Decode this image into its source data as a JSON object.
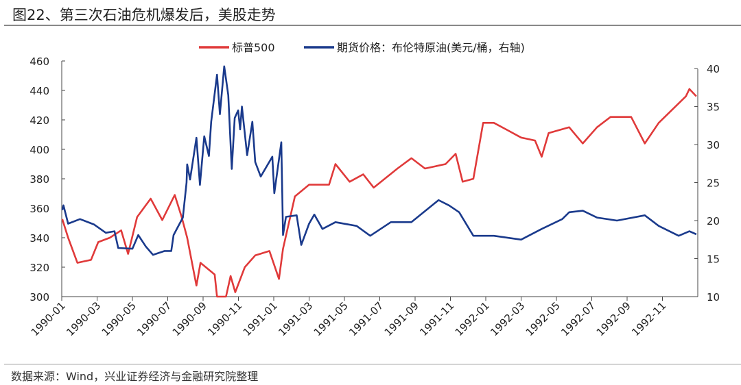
{
  "title": "图22、第三次石油危机爆发后，美股走势",
  "source": "数据来源：Wind，兴业证券经济与金融研究院整理",
  "chart_data": {
    "type": "line",
    "title": "图22、第三次石油危机爆发后，美股走势",
    "legend_position": "top",
    "grid": false,
    "x_ticks": [
      "1990-01",
      "1990-03",
      "1990-05",
      "1990-07",
      "1990-09",
      "1990-11",
      "1991-01",
      "1991-03",
      "1991-05",
      "1991-07",
      "1991-09",
      "1991-11",
      "1992-01",
      "1992-03",
      "1992-05",
      "1992-07",
      "1992-09",
      "1992-11"
    ],
    "y_left": {
      "lim": [
        300,
        460
      ],
      "ticks": [
        300,
        320,
        340,
        360,
        380,
        400,
        420,
        440,
        460
      ]
    },
    "y_right": {
      "lim": [
        10,
        41
      ],
      "ticks": [
        10,
        15,
        20,
        25,
        30,
        35,
        40
      ]
    },
    "series": [
      {
        "name": "标普500",
        "axis": "left",
        "color": "#e03a3a",
        "x": [
          "1990-01-02",
          "1990-01-12",
          "1990-01-28",
          "1990-02-21",
          "1990-03-03",
          "1990-03-23",
          "1990-04-12",
          "1990-04-24",
          "1990-05-09",
          "1990-06-02",
          "1990-06-22",
          "1990-07-13",
          "1990-07-25",
          "1990-08-04",
          "1990-08-20",
          "1990-08-27",
          "1990-09-21",
          "1990-09-25",
          "1990-10-10",
          "1990-10-18",
          "1990-10-26",
          "1990-11-12",
          "1990-11-30",
          "1990-12-24",
          "1991-01-10",
          "1991-01-17",
          "1991-02-07",
          "1991-03-01",
          "1991-04-05",
          "1991-04-16",
          "1991-05-10",
          "1991-06-03",
          "1991-06-21",
          "1991-08-01",
          "1991-08-25",
          "1991-09-18",
          "1991-10-23",
          "1991-11-10",
          "1991-11-22",
          "1991-12-10",
          "1991-12-27",
          "1992-01-15",
          "1992-02-08",
          "1992-03-01",
          "1992-03-25",
          "1992-04-06",
          "1992-04-18",
          "1992-05-23",
          "1992-06-16",
          "1992-07-10",
          "1992-08-03",
          "1992-09-08",
          "1992-10-01",
          "1992-10-25",
          "1992-11-18",
          "1992-12-11",
          "1992-12-17",
          "1992-12-29"
        ],
        "y": [
          352.6,
          340,
          323,
          325,
          337,
          340,
          345,
          329,
          354,
          366.5,
          352,
          369,
          354,
          340,
          307.5,
          323,
          315,
          300,
          300,
          314,
          303,
          320,
          328,
          331,
          312,
          332.5,
          368,
          376,
          376,
          390,
          378,
          383,
          374,
          387,
          394,
          387,
          390,
          397,
          378,
          380,
          418,
          418,
          413,
          408,
          406,
          395,
          411,
          415,
          404,
          415,
          422,
          422,
          404,
          418,
          427,
          436,
          441,
          436
        ]
      },
      {
        "name": "期货价格：布伦特原油(美元/桶，右轴)",
        "axis": "right",
        "color": "#1a3a8c",
        "x": [
          "1990-01-02",
          "1990-01-04",
          "1990-01-12",
          "1990-02-02",
          "1990-02-26",
          "1990-03-16",
          "1990-03-31",
          "1990-04-07",
          "1990-05-01",
          "1990-05-11",
          "1990-05-24",
          "1990-06-06",
          "1990-06-26",
          "1990-07-07",
          "1990-07-11",
          "1990-07-27",
          "1990-08-03",
          "1990-08-04",
          "1990-08-09",
          "1990-08-20",
          "1990-08-26",
          "1990-09-03",
          "1990-09-11",
          "1990-09-15",
          "1990-09-25",
          "1990-09-30",
          "1990-10-07",
          "1990-10-14",
          "1990-10-20",
          "1990-10-25",
          "1990-10-31",
          "1990-11-04",
          "1990-11-07",
          "1990-11-16",
          "1990-11-25",
          "1990-11-30",
          "1990-12-09",
          "1990-12-29",
          "1991-01-02",
          "1991-01-14",
          "1991-01-17",
          "1991-01-22",
          "1991-02-10",
          "1991-02-18",
          "1991-03-01",
          "1991-03-10",
          "1991-03-24",
          "1991-04-16",
          "1991-05-22",
          "1991-06-15",
          "1991-07-20",
          "1991-08-25",
          "1991-10-11",
          "1991-10-29",
          "1991-11-16",
          "1991-12-10",
          "1992-01-15",
          "1992-03-01",
          "1992-04-06",
          "1992-05-11",
          "1992-05-23",
          "1992-06-16",
          "1992-07-10",
          "1992-08-14",
          "1992-10-01",
          "1992-10-25",
          "1992-11-29",
          "1992-12-17",
          "1992-12-29"
        ],
        "y": [
          21.4,
          22.0,
          19.6,
          20.2,
          19.5,
          18.4,
          18.6,
          16.4,
          16.3,
          18.1,
          16.6,
          15.5,
          16.0,
          16.0,
          18.1,
          20.4,
          25.0,
          27.4,
          25.4,
          30.9,
          24.7,
          31.1,
          28.5,
          33.0,
          39.2,
          34.0,
          40.3,
          36.5,
          26.8,
          33.5,
          34.5,
          32.0,
          35.0,
          28.6,
          33.0,
          27.7,
          25.8,
          28.4,
          23.6,
          30.3,
          18.1,
          20.5,
          20.7,
          16.8,
          19.6,
          20.8,
          18.9,
          19.8,
          19.3,
          18.0,
          19.8,
          19.8,
          22.7,
          22.0,
          21.1,
          18.0,
          18.0,
          17.5,
          18.9,
          20.2,
          21.1,
          21.3,
          20.4,
          20.0,
          20.7,
          19.3,
          18.0,
          18.6,
          18.2
        ]
      }
    ]
  }
}
